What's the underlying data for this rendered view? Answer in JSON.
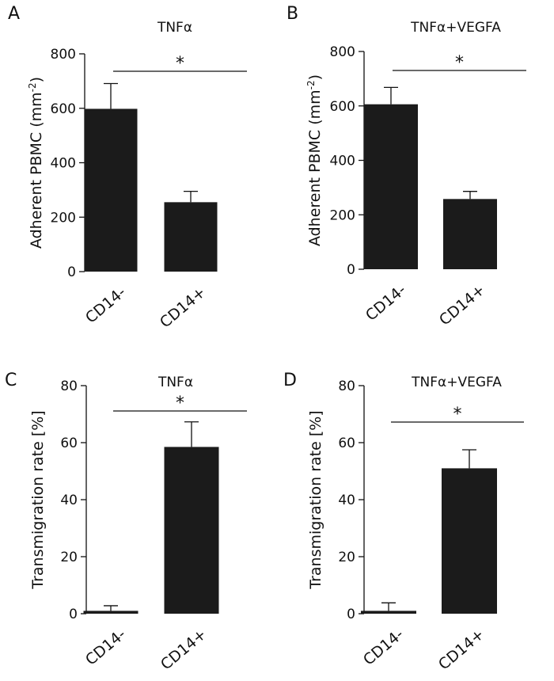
{
  "chart_data": [
    {
      "panel": "A",
      "type": "bar",
      "title": "TNFα",
      "ylabel": "Adherent PBMC (mm",
      "ylabel_sup": "-2",
      "ylabel_suffix": ")",
      "xlabel": "",
      "ylim": [
        0,
        800
      ],
      "yticks": [
        0,
        200,
        400,
        600,
        800
      ],
      "categories": [
        "CD14-",
        "CD14+"
      ],
      "values": [
        598,
        255
      ],
      "errors": [
        93,
        40
      ],
      "significance": "*"
    },
    {
      "panel": "B",
      "type": "bar",
      "title": "TNFα+VEGFA",
      "ylabel": "Adherent PBMC (mm",
      "ylabel_sup": "-2",
      "ylabel_suffix": ")",
      "xlabel": "",
      "ylim": [
        0,
        800
      ],
      "yticks": [
        0,
        200,
        400,
        600,
        800
      ],
      "categories": [
        "CD14-",
        "CD14+"
      ],
      "values": [
        606,
        258
      ],
      "errors": [
        62,
        28
      ],
      "significance": "*"
    },
    {
      "panel": "C",
      "type": "bar",
      "title": "TNFα",
      "ylabel": "Transmigration rate [%]",
      "ylabel_sup": "",
      "ylabel_suffix": "",
      "xlabel": "",
      "ylim": [
        0,
        80
      ],
      "yticks": [
        0,
        20,
        40,
        60,
        80
      ],
      "categories": [
        "CD14-",
        "CD14+"
      ],
      "values": [
        1,
        58.5
      ],
      "errors": [
        1.8,
        8.8
      ],
      "significance": "*"
    },
    {
      "panel": "D",
      "type": "bar",
      "title": "TNFα+VEGFA",
      "ylabel": "Transmigration rate [%]",
      "ylabel_sup": "",
      "ylabel_suffix": "",
      "xlabel": "",
      "ylim": [
        0,
        80
      ],
      "yticks": [
        0,
        20,
        40,
        60,
        80
      ],
      "categories": [
        "CD14-",
        "CD14+"
      ],
      "values": [
        1,
        51
      ],
      "errors": [
        2.8,
        6.5
      ],
      "significance": "*"
    }
  ]
}
